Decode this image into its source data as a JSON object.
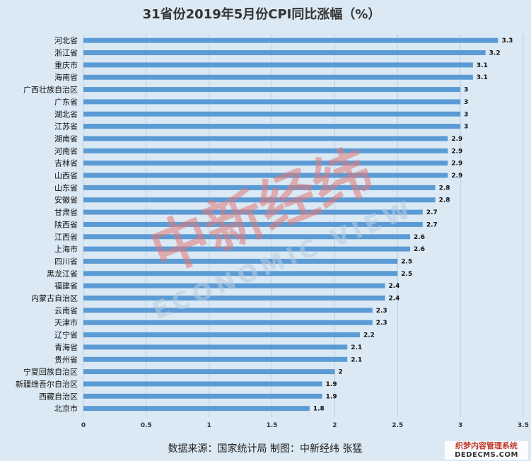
{
  "chart_data": {
    "type": "bar",
    "orientation": "horizontal",
    "title": "31省份2019年5月份CPI同比涨幅（%）",
    "categories": [
      "河北省",
      "浙江省",
      "重庆市",
      "海南省",
      "广西壮族自治区",
      "广东省",
      "湖北省",
      "江苏省",
      "湖南省",
      "河南省",
      "吉林省",
      "山西省",
      "山东省",
      "安徽省",
      "甘肃省",
      "陕西省",
      "江西省",
      "上海市",
      "四川省",
      "黑龙江省",
      "福建省",
      "内蒙古自治区",
      "云南省",
      "天津市",
      "辽宁省",
      "青海省",
      "贵州省",
      "宁夏回族自治区",
      "新疆维吾尔自治区",
      "西藏自治区",
      "北京市"
    ],
    "values": [
      3.3,
      3.2,
      3.1,
      3.1,
      3,
      3,
      3,
      3,
      2.9,
      2.9,
      2.9,
      2.9,
      2.8,
      2.8,
      2.7,
      2.7,
      2.6,
      2.6,
      2.5,
      2.5,
      2.4,
      2.4,
      2.3,
      2.3,
      2.2,
      2.1,
      2.1,
      2,
      1.9,
      1.9,
      1.8
    ],
    "value_labels": [
      "3.3",
      "3.2",
      "3.1",
      "3.1",
      "3",
      "3",
      "3",
      "3",
      "2.9",
      "2.9",
      "2.9",
      "2.9",
      "2.8",
      "2.8",
      "2.7",
      "2.7",
      "2.6",
      "2.6",
      "2.5",
      "2.5",
      "2.4",
      "2.4",
      "2.3",
      "2.3",
      "2.2",
      "2.1",
      "2.1",
      "2",
      "1.9",
      "1.9",
      "1.8"
    ],
    "xlim": [
      0,
      3.5
    ],
    "x_ticks": [
      "0",
      "0.5",
      "1",
      "1.5",
      "2",
      "2.5",
      "3",
      "3.5"
    ],
    "grid": "vertical",
    "bar_color": "#5b9bd5",
    "grid_color": "#bfcfdc",
    "background": "#dbe9f4"
  },
  "source": "数据来源：国家统计局  制图：中新经纬  张猛",
  "watermark": {
    "main": "中新经纬",
    "sub": "ECONOMIC VIEW",
    "color": "#e07a7a",
    "sub_color": "#b8cde0"
  },
  "corner_watermark": {
    "line1": "织梦内容管理系统",
    "line2": "DEDECMS.COM"
  }
}
